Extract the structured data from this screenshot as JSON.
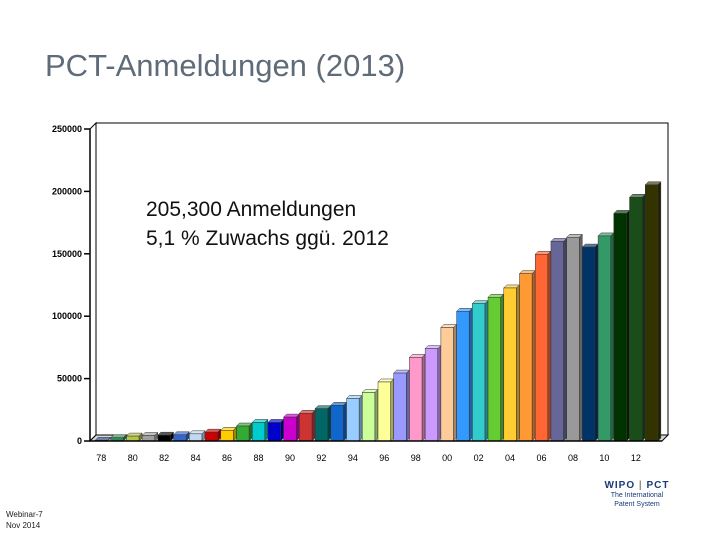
{
  "title": "PCT-Anmeldungen (2013)",
  "annotation": {
    "line1": "205,300 Anmeldungen",
    "line2": "5,1 % Zuwachs ggü. 2012"
  },
  "footer": {
    "webinar_line1": "Webinar-7",
    "webinar_line2": "Nov 2014",
    "logo_left": "WIPO",
    "logo_sep": "|",
    "logo_right": "PCT",
    "logo_sub1": "The International",
    "logo_sub2": "Patent System"
  },
  "chart_data": {
    "type": "bar",
    "x": [
      "1978",
      "1979",
      "1980",
      "1981",
      "1982",
      "1983",
      "1984",
      "1985",
      "1986",
      "1987",
      "1988",
      "1989",
      "1990",
      "1991",
      "1992",
      "1993",
      "1994",
      "1995",
      "1996",
      "1997",
      "1998",
      "1999",
      "2000",
      "2001",
      "2002",
      "2003",
      "2004",
      "2005",
      "2006",
      "2007",
      "2008",
      "2009",
      "2010",
      "2011",
      "2012",
      "2013"
    ],
    "values": [
      459,
      2625,
      3939,
      4454,
      4674,
      4971,
      5747,
      7095,
      8586,
      11996,
      14874,
      14875,
      19159,
      22247,
      25917,
      28577,
      34104,
      38906,
      47291,
      54422,
      67007,
      74023,
      90948,
      103947,
      110065,
      115197,
      122638,
      134073,
      149650,
      159923,
      163240,
      155398,
      164316,
      182354,
      195308,
      205300
    ],
    "x_tick_labels": [
      "78",
      "80",
      "82",
      "84",
      "86",
      "88",
      "90",
      "92",
      "94",
      "96",
      "98",
      "00",
      "02",
      "04",
      "06",
      "08",
      "10",
      "12"
    ],
    "y_tick_labels": [
      "0",
      "50000",
      "100000",
      "150000",
      "200000",
      "250000"
    ],
    "ylim": [
      0,
      250000
    ],
    "colors": [
      "#1f3b7a",
      "#2e8b57",
      "#b6c44a",
      "#a0a0a0",
      "#000000",
      "#3366cc",
      "#c0d8f0",
      "#cc0000",
      "#ffcc00",
      "#33aa33",
      "#00cccc",
      "#0000cc",
      "#cc00cc",
      "#cc3333",
      "#006666",
      "#1166cc",
      "#99ccff",
      "#ccff99",
      "#ffff99",
      "#9999ff",
      "#ff99cc",
      "#cc99ff",
      "#ffcc99",
      "#3399ff",
      "#33cccc",
      "#66cc33",
      "#ffcc33",
      "#ff9933",
      "#ff6633",
      "#666699",
      "#999999",
      "#003366",
      "#339966",
      "#003300",
      "#1a4d1a",
      "#333300"
    ],
    "grid": false,
    "legend": "none"
  }
}
